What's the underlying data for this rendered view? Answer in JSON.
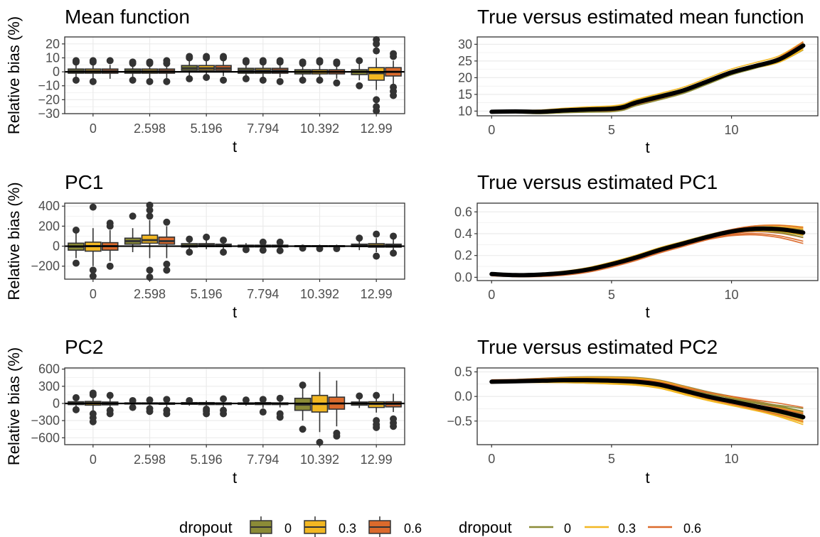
{
  "colors": {
    "dropout_0": "#8B8B37",
    "dropout_0.3": "#F2B722",
    "dropout_0.6": "#DB6A2C",
    "true_curve": "#000000",
    "outline": "#333333",
    "grid": "#EBEBEB"
  },
  "chart_data": [
    {
      "type": "box",
      "title": "Mean function",
      "xlabel": "t",
      "ylabel": "Relative bias (%)",
      "categories": [
        "0",
        "2.598",
        "5.196",
        "7.794",
        "10.392",
        "12.99"
      ],
      "ylim": [
        -30,
        25
      ],
      "yticks": [
        -30,
        -20,
        -10,
        0,
        10,
        20
      ],
      "yticklabels": [
        "−30",
        "−20",
        "−10",
        "0",
        "10",
        "20"
      ],
      "series": [
        {
          "name": "0",
          "boxes": [
            [
              -5,
              -1,
              0.5,
              2,
              5,
              [
                -6,
                7,
                8
              ]
            ],
            [
              -5,
              -1,
              0.5,
              2,
              5,
              [
                -6,
                6,
                7
              ]
            ],
            [
              -3,
              1,
              2.5,
              4.5,
              8,
              [
                -5,
                10,
                11
              ]
            ],
            [
              -4,
              -1,
              1,
              2.5,
              6,
              [
                -5,
                7,
                8
              ]
            ],
            [
              -5,
              -1.5,
              0,
              1.5,
              5,
              [
                -6,
                6,
                7
              ]
            ],
            [
              -6,
              -2,
              0,
              1.5,
              6,
              [
                -10,
                8
              ]
            ]
          ]
        },
        {
          "name": "0.3",
          "boxes": [
            [
              -6,
              -1,
              0.5,
              2,
              6,
              [
                -7,
                7,
                8
              ]
            ],
            [
              -5,
              -1,
              0.5,
              2,
              5,
              [
                -7,
                6,
                7
              ]
            ],
            [
              -3,
              1,
              2.5,
              4.5,
              8,
              [
                -4,
                10,
                11
              ]
            ],
            [
              -5,
              -1,
              1,
              2.5,
              6,
              [
                -6,
                7,
                8
              ]
            ],
            [
              -5,
              -1.5,
              0,
              1.5,
              5,
              [
                -6,
                7,
                8
              ]
            ],
            [
              -13,
              -6,
              -1,
              3,
              10,
              [
                -28,
                -25,
                -20,
                15,
                20,
                23
              ]
            ]
          ]
        },
        {
          "name": "0.6",
          "boxes": [
            [
              -5,
              -1,
              0.5,
              2,
              5,
              [
                8
              ]
            ],
            [
              -5,
              -1,
              0.5,
              2,
              5,
              [
                -7,
                6,
                8
              ]
            ],
            [
              -3,
              1,
              2.5,
              4.5,
              8,
              [
                -6,
                10,
                11
              ]
            ],
            [
              -4,
              -1,
              1,
              2.5,
              6,
              [
                -7,
                7,
                8
              ]
            ],
            [
              -5,
              -1.5,
              0,
              1.5,
              5,
              [
                -8,
                6,
                7
              ]
            ],
            [
              -10,
              -3,
              0,
              3,
              8,
              [
                -17,
                -14,
                -11,
                11,
                13
              ]
            ]
          ]
        }
      ]
    },
    {
      "type": "line",
      "title": "True versus estimated mean function",
      "xlabel": "t",
      "xlim": [
        -0.6,
        13.6
      ],
      "ylim": [
        8.6,
        32.2
      ],
      "xticks": [
        0,
        5,
        10
      ],
      "yticks": [
        10,
        15,
        20,
        25,
        30
      ],
      "true_curve": {
        "x": [
          0,
          1,
          2,
          3,
          4,
          5,
          5.5,
          6,
          7,
          8,
          9,
          10,
          11,
          12,
          12.99
        ],
        "y": [
          9.8,
          9.9,
          9.8,
          10.2,
          10.5,
          10.7,
          11.2,
          12.5,
          14.3,
          16.2,
          18.9,
          21.6,
          23.5,
          25.5,
          29.6
        ]
      }
    },
    {
      "type": "box",
      "title": "PC1",
      "xlabel": "t",
      "ylabel": "Relative bias (%)",
      "categories": [
        "0",
        "2.598",
        "5.196",
        "7.794",
        "10.392",
        "12.99"
      ],
      "ylim": [
        -330,
        430
      ],
      "yticks": [
        -200,
        0,
        200,
        400
      ],
      "yticklabels": [
        "−200",
        "0",
        "200",
        "400"
      ],
      "series": [
        {
          "name": "0",
          "boxes": [
            [
              -120,
              -40,
              -5,
              30,
              140,
              [
                -170,
                160
              ]
            ],
            [
              -60,
              20,
              50,
              80,
              180,
              [
                300
              ]
            ],
            [
              -30,
              -8,
              5,
              25,
              60,
              [
                -60,
                70
              ]
            ],
            [
              -20,
              -8,
              0,
              10,
              30,
              [
                -35
              ]
            ],
            [
              -15,
              -5,
              0,
              5,
              15,
              [
                -20
              ]
            ],
            [
              -40,
              -5,
              5,
              20,
              60,
              [
                80
              ]
            ]
          ]
        },
        {
          "name": "0.3",
          "boxes": [
            [
              -200,
              -50,
              0,
              40,
              180,
              [
                -300,
                -240,
                390
              ]
            ],
            [
              -120,
              30,
              60,
              110,
              260,
              [
                -310,
                -240,
                300,
                360,
                410
              ]
            ],
            [
              -30,
              -5,
              10,
              25,
              60,
              [
                90
              ]
            ],
            [
              -25,
              -8,
              0,
              10,
              30,
              [
                -40,
                40
              ]
            ],
            [
              -15,
              -5,
              0,
              5,
              15,
              [
                -25
              ]
            ],
            [
              -60,
              -10,
              5,
              25,
              80,
              [
                -100,
                120
              ]
            ]
          ]
        },
        {
          "name": "0.6",
          "boxes": [
            [
              -150,
              -40,
              0,
              35,
              160,
              [
                -200,
                200,
                230
              ]
            ],
            [
              -120,
              20,
              50,
              90,
              200,
              [
                -240,
                -180,
                240
              ]
            ],
            [
              -30,
              -5,
              5,
              20,
              50,
              [
                -60,
                60
              ]
            ],
            [
              -20,
              -8,
              0,
              10,
              25,
              [
                -45,
                40
              ]
            ],
            [
              -15,
              -5,
              0,
              5,
              15,
              [
                -25
              ]
            ],
            [
              -50,
              -10,
              5,
              20,
              70,
              [
                -70,
                100
              ]
            ]
          ]
        }
      ]
    },
    {
      "type": "line",
      "title": "True versus estimated PC1",
      "xlabel": "t",
      "xlim": [
        -0.6,
        13.6
      ],
      "ylim": [
        -0.03,
        0.68
      ],
      "xticks": [
        0,
        5,
        10
      ],
      "yticks": [
        0,
        0.2,
        0.4,
        0.6
      ],
      "yticklabels": [
        "0.0",
        "0.2",
        "0.4",
        "0.6"
      ],
      "true_curve": {
        "x": [
          0,
          1,
          2,
          3,
          4,
          5,
          6,
          7,
          8,
          9,
          10,
          11,
          12,
          12.99
        ],
        "y": [
          0.03,
          0.02,
          0.025,
          0.04,
          0.07,
          0.12,
          0.18,
          0.25,
          0.31,
          0.37,
          0.42,
          0.445,
          0.44,
          0.41
        ]
      }
    },
    {
      "type": "box",
      "title": "PC2",
      "xlabel": "t",
      "ylabel": "Relative bias (%)",
      "categories": [
        "0",
        "2.598",
        "5.196",
        "7.794",
        "10.392",
        "12.99"
      ],
      "ylim": [
        -720,
        620
      ],
      "yticks": [
        -600,
        -300,
        0,
        300,
        600
      ],
      "yticklabels": [
        "−600",
        "−300",
        "0",
        "300",
        "600"
      ],
      "series": [
        {
          "name": "0",
          "boxes": [
            [
              -80,
              -20,
              5,
              30,
              90,
              [
                -110,
                100
              ]
            ],
            [
              -40,
              -10,
              0,
              10,
              40,
              [
                -70,
                50
              ]
            ],
            [
              -40,
              -15,
              0,
              15,
              40,
              [
                50
              ]
            ],
            [
              -40,
              -15,
              0,
              10,
              40,
              [
                60
              ]
            ],
            [
              -300,
              -120,
              -20,
              90,
              300,
              [
                -450,
                320
              ]
            ],
            [
              -80,
              -30,
              0,
              25,
              80,
              [
                130
              ]
            ]
          ]
        },
        {
          "name": "0.3",
          "boxes": [
            [
              -150,
              -30,
              5,
              35,
              120,
              [
                -320,
                -250,
                -180,
                150,
                180
              ]
            ],
            [
              -50,
              -10,
              0,
              10,
              40,
              [
                -90,
                -140,
                60
              ]
            ],
            [
              -70,
              -20,
              -5,
              15,
              50,
              [
                -180,
                -130,
                -100
              ]
            ],
            [
              -80,
              -20,
              -5,
              15,
              50,
              [
                -150,
                70
              ]
            ],
            [
              -500,
              -150,
              -10,
              140,
              550,
              [
                -680
              ]
            ],
            [
              -160,
              -70,
              -10,
              30,
              140,
              [
                -420,
                -370,
                -300,
                140
              ]
            ]
          ]
        },
        {
          "name": "0.6",
          "boxes": [
            [
              -90,
              -25,
              0,
              25,
              100,
              [
                -180,
                -120,
                140
              ]
            ],
            [
              -60,
              -15,
              0,
              10,
              40,
              [
                -180,
                -120,
                70
              ]
            ],
            [
              -60,
              -20,
              -5,
              10,
              40,
              [
                -180,
                -120,
                80
              ]
            ],
            [
              -70,
              -20,
              -5,
              10,
              40,
              [
                -240,
                -180,
                90
              ]
            ],
            [
              -400,
              -100,
              0,
              110,
              400,
              [
                -570,
                -520
              ]
            ],
            [
              -150,
              -60,
              -10,
              30,
              170,
              [
                -400,
                -340,
                -270
              ]
            ]
          ]
        }
      ]
    },
    {
      "type": "line",
      "title": "True versus estimated PC2",
      "xlabel": "t",
      "xlim": [
        -0.6,
        13.6
      ],
      "ylim": [
        -0.98,
        0.58
      ],
      "xticks": [
        0,
        5,
        10
      ],
      "yticks": [
        -0.5,
        0,
        0.5
      ],
      "yticklabels": [
        "−0.5",
        "0.0",
        "0.5"
      ],
      "true_curve": {
        "x": [
          0,
          1,
          2,
          3,
          4,
          5,
          6,
          7,
          8,
          9,
          10,
          11,
          12,
          12.99
        ],
        "y": [
          0.3,
          0.31,
          0.32,
          0.33,
          0.33,
          0.32,
          0.3,
          0.24,
          0.12,
          0.0,
          -0.1,
          -0.2,
          -0.3,
          -0.42
        ]
      }
    }
  ],
  "legends": [
    {
      "title": "dropout",
      "labels": [
        "0",
        "0.3",
        "0.6"
      ],
      "key": "box"
    },
    {
      "title": "dropout",
      "labels": [
        "0",
        "0.3",
        "0.6"
      ],
      "key": "line"
    }
  ]
}
